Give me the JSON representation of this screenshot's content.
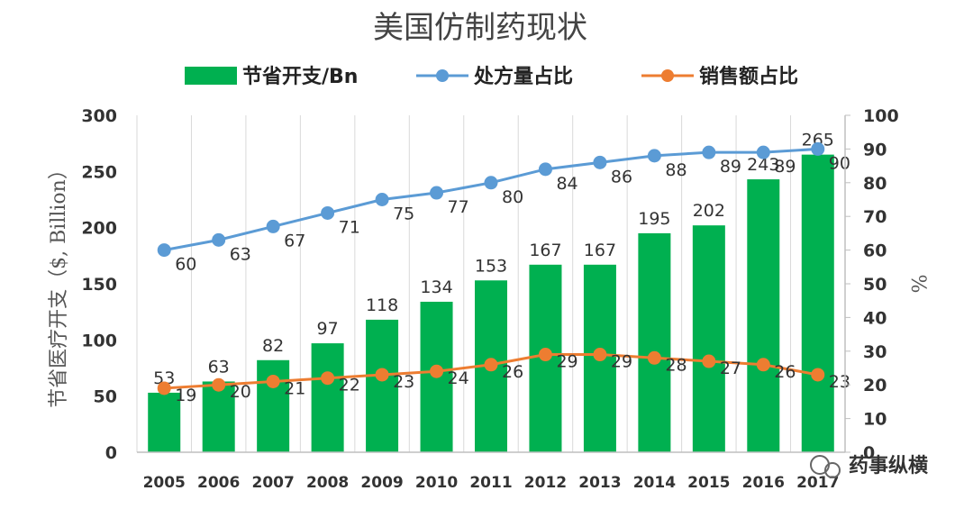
{
  "chart_data": {
    "type": "bar",
    "title": "美国仿制药现状",
    "categories": [
      "2005",
      "2006",
      "2007",
      "2008",
      "2009",
      "2010",
      "2011",
      "2012",
      "2013",
      "2014",
      "2015",
      "2016",
      "2017"
    ],
    "ylabel": "节省医疗开支（$, Billion）",
    "y2label": "%",
    "ylim": [
      0,
      300
    ],
    "y2lim": [
      0,
      100
    ],
    "yticks": [
      0,
      50,
      100,
      150,
      200,
      250,
      300
    ],
    "y2ticks": [
      0,
      10,
      20,
      30,
      40,
      50,
      60,
      70,
      80,
      90,
      100
    ],
    "grid": "vertical",
    "legend_position": "top",
    "series": [
      {
        "name": "节省开支/Bn",
        "type": "bar",
        "axis": "left",
        "color": "#00b050",
        "values": [
          53,
          63,
          82,
          97,
          118,
          134,
          153,
          167,
          167,
          195,
          202,
          243,
          265
        ]
      },
      {
        "name": "处方量占比",
        "type": "line",
        "axis": "right",
        "color": "#5b9bd5",
        "values": [
          60,
          63,
          67,
          71,
          75,
          77,
          80,
          84,
          86,
          88,
          89,
          89,
          90
        ]
      },
      {
        "name": "销售额占比",
        "type": "line",
        "axis": "right",
        "color": "#ed7d31",
        "values": [
          19,
          20,
          21,
          22,
          23,
          24,
          26,
          29,
          29,
          28,
          27,
          26,
          23
        ]
      }
    ]
  },
  "watermark": "药事纵横"
}
